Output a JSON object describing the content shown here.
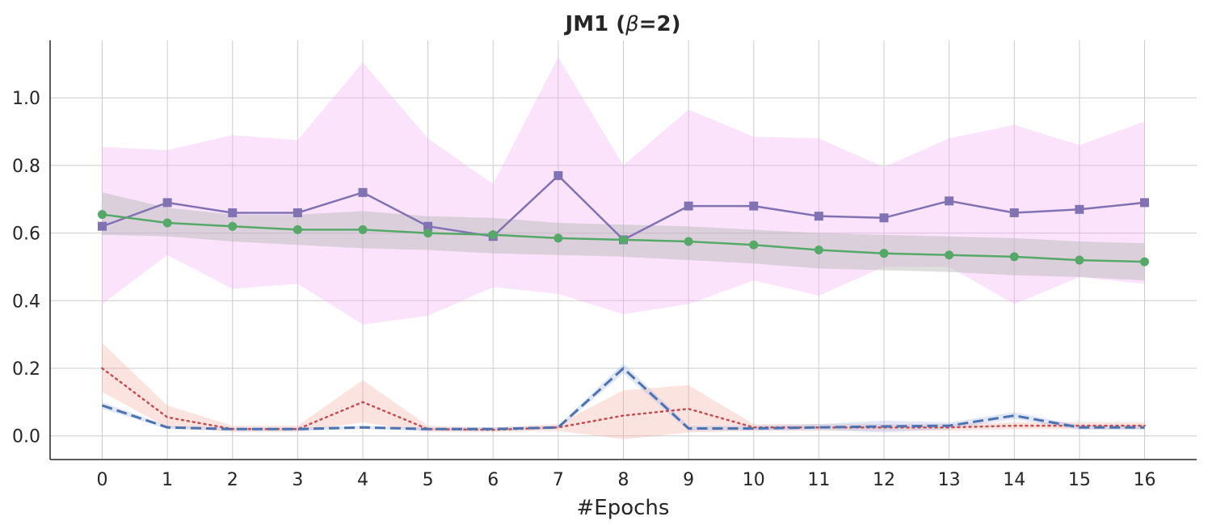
{
  "chart_data": {
    "type": "line",
    "title": "JM1 (β=2)",
    "title_parts": [
      "JM1 (",
      "β",
      "=2)"
    ],
    "xlabel": "#Epochs",
    "ylabel": "",
    "x": [
      0,
      1,
      2,
      3,
      4,
      5,
      6,
      7,
      8,
      9,
      10,
      11,
      12,
      13,
      14,
      15,
      16
    ],
    "x_tick_labels": [
      "0",
      "1",
      "2",
      "3",
      "4",
      "5",
      "6",
      "7",
      "8",
      "9",
      "10",
      "11",
      "12",
      "13",
      "14",
      "15",
      "16"
    ],
    "xlim": [
      -0.8,
      16.8
    ],
    "ylim": [
      -0.07,
      1.17
    ],
    "y_ticks": [
      0.0,
      0.2,
      0.4,
      0.6,
      0.8,
      1.0
    ],
    "y_tick_labels": [
      "0.0",
      "0.2",
      "0.4",
      "0.6",
      "0.8",
      "1.0"
    ],
    "grid": true,
    "series": [
      {
        "name": "purple-squares",
        "color": "#8172b3",
        "band_color": "#f5a8f5",
        "line_style": "solid",
        "marker": "square",
        "values": [
          0.62,
          0.69,
          0.66,
          0.66,
          0.72,
          0.62,
          0.59,
          0.77,
          0.58,
          0.68,
          0.68,
          0.65,
          0.645,
          0.695,
          0.66,
          0.67,
          0.69
        ],
        "lower": [
          0.39,
          0.535,
          0.435,
          0.45,
          0.33,
          0.355,
          0.44,
          0.42,
          0.36,
          0.39,
          0.46,
          0.415,
          0.5,
          0.5,
          0.39,
          0.47,
          0.45
        ],
        "upper": [
          0.855,
          0.845,
          0.89,
          0.875,
          1.105,
          0.88,
          0.745,
          1.12,
          0.8,
          0.965,
          0.885,
          0.88,
          0.795,
          0.88,
          0.92,
          0.86,
          0.93
        ]
      },
      {
        "name": "green-circles",
        "color": "#55a868",
        "band_color": "#b5b5b5",
        "line_style": "solid",
        "marker": "circle",
        "values": [
          0.655,
          0.63,
          0.62,
          0.61,
          0.61,
          0.6,
          0.595,
          0.585,
          0.58,
          0.575,
          0.565,
          0.55,
          0.54,
          0.535,
          0.53,
          0.52,
          0.515
        ],
        "lower": [
          0.595,
          0.59,
          0.575,
          0.565,
          0.555,
          0.55,
          0.54,
          0.535,
          0.53,
          0.52,
          0.51,
          0.495,
          0.49,
          0.485,
          0.475,
          0.47,
          0.46
        ],
        "upper": [
          0.72,
          0.675,
          0.655,
          0.655,
          0.665,
          0.65,
          0.645,
          0.63,
          0.625,
          0.62,
          0.61,
          0.6,
          0.595,
          0.59,
          0.585,
          0.575,
          0.57
        ]
      },
      {
        "name": "red-dotted",
        "color": "#c44e52",
        "band_color": "#f4a79a",
        "line_style": "dotted",
        "marker": "none",
        "values": [
          0.2,
          0.055,
          0.02,
          0.02,
          0.1,
          0.02,
          0.018,
          0.025,
          0.06,
          0.08,
          0.025,
          0.025,
          0.025,
          0.025,
          0.03,
          0.03,
          0.03
        ],
        "lower": [
          0.13,
          0.025,
          0.012,
          0.012,
          0.04,
          0.012,
          0.012,
          0.015,
          -0.01,
          0.01,
          0.015,
          0.015,
          0.015,
          0.015,
          0.02,
          0.02,
          0.02
        ],
        "upper": [
          0.275,
          0.09,
          0.03,
          0.03,
          0.165,
          0.03,
          0.025,
          0.035,
          0.135,
          0.15,
          0.035,
          0.035,
          0.035,
          0.035,
          0.04,
          0.04,
          0.04
        ]
      },
      {
        "name": "blue-dashed",
        "color": "#4c72b0",
        "band_color": "#a1b4e6",
        "line_style": "dashed",
        "marker": "none",
        "values": [
          0.09,
          0.025,
          0.02,
          0.02,
          0.025,
          0.02,
          0.02,
          0.025,
          0.2,
          0.022,
          0.022,
          0.025,
          0.028,
          0.03,
          0.06,
          0.025,
          0.025
        ],
        "lower": [
          0.08,
          0.02,
          0.015,
          0.015,
          0.02,
          0.015,
          0.015,
          0.02,
          0.185,
          0.015,
          0.015,
          0.018,
          0.01,
          0.02,
          0.05,
          0.018,
          0.018
        ],
        "upper": [
          0.1,
          0.03,
          0.025,
          0.025,
          0.03,
          0.025,
          0.025,
          0.03,
          0.215,
          0.03,
          0.03,
          0.035,
          0.045,
          0.04,
          0.07,
          0.032,
          0.032
        ]
      }
    ]
  }
}
